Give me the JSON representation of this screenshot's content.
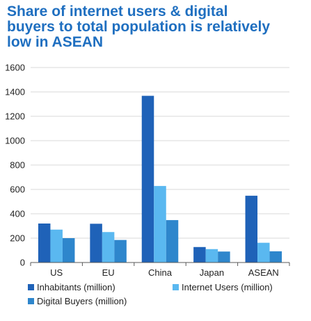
{
  "title_lines": [
    "Share of internet users & digital",
    "buyers to total population is relatively",
    "low in ASEAN"
  ],
  "chart_data": {
    "type": "bar",
    "title": "Share of internet users & digital buyers to total population is relatively low in ASEAN",
    "categories": [
      "US",
      "EU",
      "China",
      "Japan",
      "ASEAN"
    ],
    "series": [
      {
        "name": "Inhabitants (million)",
        "color": "#1f62b8",
        "values": [
          320,
          318,
          1368,
          127,
          548
        ]
      },
      {
        "name": "Internet Users (million)",
        "color": "#5ab8f0",
        "values": [
          270,
          250,
          628,
          110,
          162
        ]
      },
      {
        "name": "Digital Buyers (million)",
        "color": "#2e86cc",
        "values": [
          200,
          185,
          348,
          90,
          92
        ]
      }
    ],
    "yticks": [
      0,
      200,
      400,
      600,
      800,
      1000,
      1200,
      1400,
      1600
    ],
    "ylim": [
      0,
      1600
    ],
    "xlabel": "",
    "ylabel": "",
    "grid": true,
    "legend_position": "bottom"
  }
}
